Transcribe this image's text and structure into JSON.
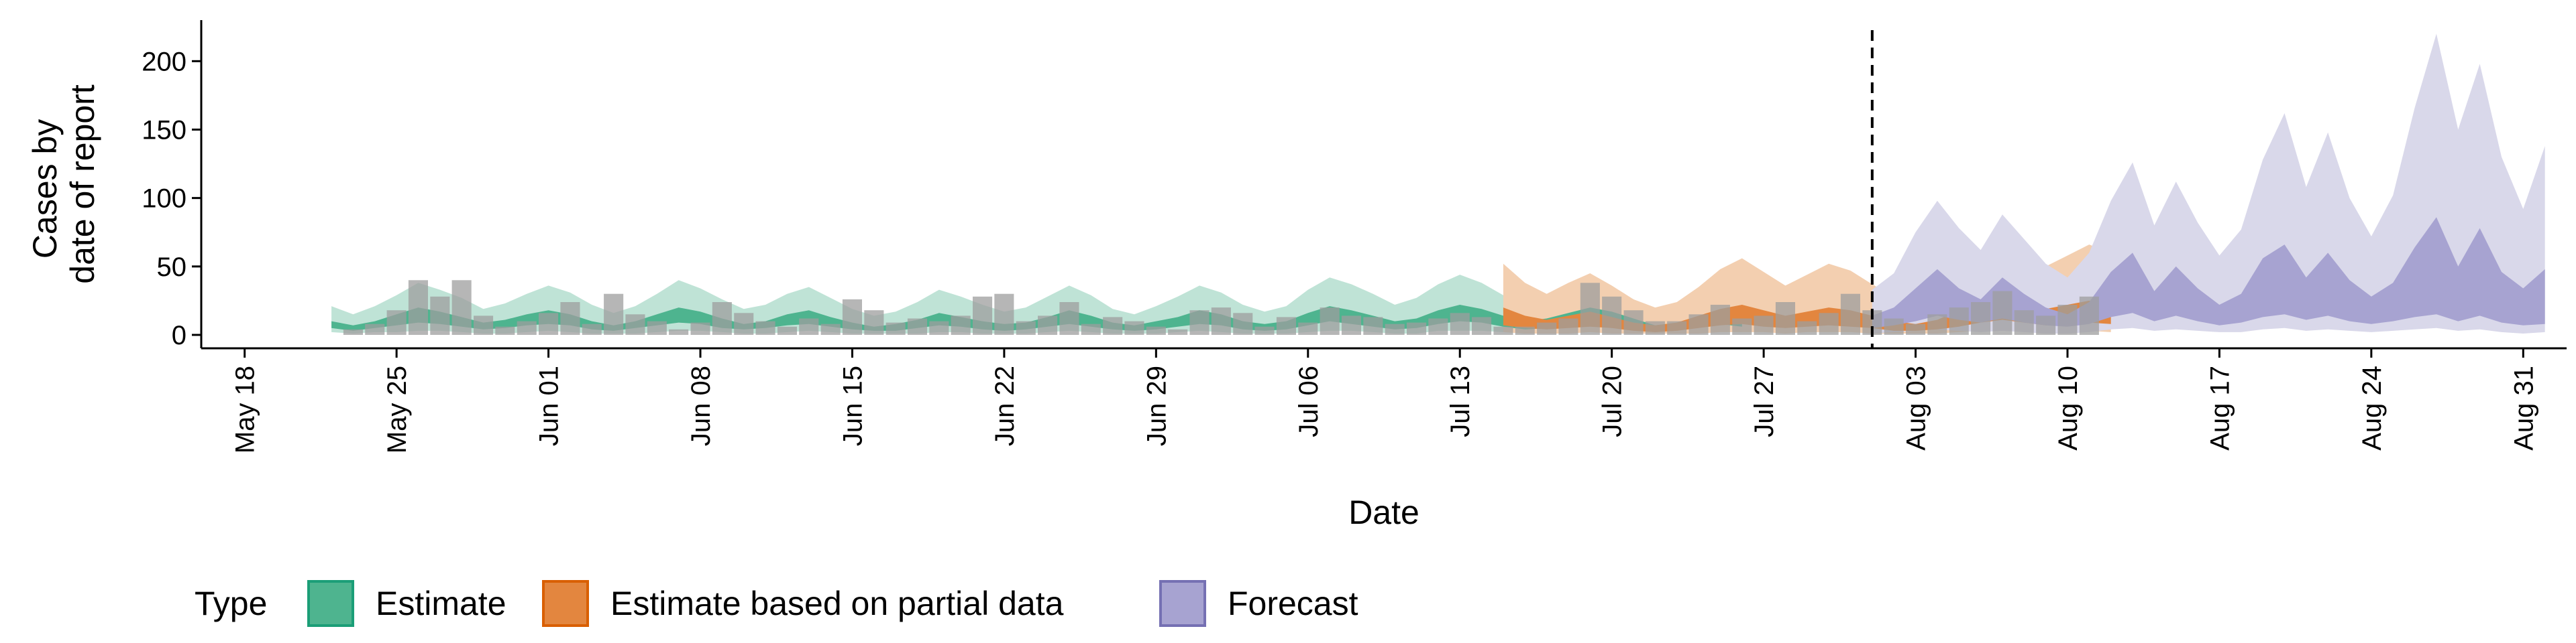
{
  "chart_data": {
    "type": "area",
    "title": "",
    "xlabel": "Date",
    "ylabel_lines": [
      "Cases by",
      "date of report"
    ],
    "ylim": [
      0,
      230
    ],
    "yticks": [
      0,
      50,
      100,
      150,
      200
    ],
    "x_range": [
      "2020-05-16",
      "2020-09-02"
    ],
    "xticks": [
      {
        "date": "2020-05-18",
        "label": "May 18"
      },
      {
        "date": "2020-05-25",
        "label": "May 25"
      },
      {
        "date": "2020-06-01",
        "label": "Jun 01"
      },
      {
        "date": "2020-06-08",
        "label": "Jun 08"
      },
      {
        "date": "2020-06-15",
        "label": "Jun 15"
      },
      {
        "date": "2020-06-22",
        "label": "Jun 22"
      },
      {
        "date": "2020-06-29",
        "label": "Jun 29"
      },
      {
        "date": "2020-07-06",
        "label": "Jul 06"
      },
      {
        "date": "2020-07-13",
        "label": "Jul 13"
      },
      {
        "date": "2020-07-20",
        "label": "Jul 20"
      },
      {
        "date": "2020-07-27",
        "label": "Jul 27"
      },
      {
        "date": "2020-08-03",
        "label": "Aug 03"
      },
      {
        "date": "2020-08-10",
        "label": "Aug 10"
      },
      {
        "date": "2020-08-17",
        "label": "Aug 17"
      },
      {
        "date": "2020-08-24",
        "label": "Aug 24"
      },
      {
        "date": "2020-08-31",
        "label": "Aug 31"
      }
    ],
    "forecast_date": "2020-08-01",
    "legend": {
      "title": "Type",
      "placement": "bottom",
      "entries": [
        {
          "key": "estimate",
          "label": "Estimate"
        },
        {
          "key": "partial",
          "label": "Estimate based on partial data"
        },
        {
          "key": "forecast",
          "label": "Forecast"
        }
      ]
    },
    "colors": {
      "estimate": "#1b9e77",
      "partial": "#d95f02",
      "forecast": "#7570b3",
      "observed": "#9e9e9e",
      "estimate_outer": "#bfe3d6",
      "estimate_inner": "#4eb48f",
      "partial_outer": "#f3cfb0",
      "partial_inner": "#e3863f",
      "forecast_outer": "#d9d8ea",
      "forecast_inner": "#a7a3d1"
    },
    "series": [
      {
        "key": "estimate",
        "start": "2020-05-22",
        "outer_upper": [
          21,
          15,
          21,
          29,
          38,
          33,
          27,
          19,
          23,
          30,
          36,
          31,
          22,
          16,
          21,
          30,
          40,
          34,
          26,
          19,
          22,
          30,
          35,
          27,
          19,
          14,
          17,
          24,
          33,
          28,
          22,
          17,
          20,
          28,
          36,
          29,
          19,
          15,
          21,
          28,
          36,
          31,
          22,
          17,
          21,
          33,
          42,
          37,
          30,
          22,
          27,
          37,
          44,
          38,
          29,
          21,
          25,
          33,
          40,
          35,
          26,
          17,
          19,
          28,
          35,
          30
        ],
        "inner_upper": [
          10,
          7,
          10,
          15,
          20,
          17,
          13,
          9,
          11,
          15,
          18,
          15,
          10,
          7,
          10,
          15,
          20,
          17,
          12,
          8,
          10,
          15,
          18,
          13,
          9,
          6,
          8,
          11,
          16,
          13,
          10,
          8,
          9,
          13,
          18,
          14,
          9,
          7,
          10,
          13,
          18,
          15,
          10,
          8,
          10,
          16,
          21,
          18,
          14,
          10,
          12,
          18,
          22,
          19,
          14,
          10,
          12,
          16,
          20,
          17,
          12,
          7,
          9,
          13,
          17,
          14
        ],
        "inner_lower": [
          5,
          3,
          5,
          7,
          9,
          8,
          6,
          4,
          5,
          7,
          8,
          7,
          4,
          3,
          5,
          7,
          9,
          8,
          5,
          4,
          5,
          7,
          8,
          6,
          4,
          3,
          3,
          5,
          7,
          6,
          4,
          3,
          4,
          6,
          8,
          6,
          4,
          3,
          4,
          6,
          8,
          7,
          4,
          3,
          4,
          7,
          10,
          8,
          6,
          4,
          5,
          8,
          10,
          9,
          6,
          4,
          5,
          7,
          9,
          8,
          5,
          3,
          4,
          6,
          8,
          6
        ],
        "outer_lower": [
          2,
          1,
          2,
          2,
          3,
          3,
          2,
          1,
          1,
          2,
          3,
          2,
          1,
          1,
          1,
          2,
          3,
          3,
          2,
          1,
          1,
          2,
          3,
          2,
          1,
          1,
          1,
          1,
          2,
          2,
          1,
          1,
          1,
          2,
          3,
          2,
          1,
          1,
          1,
          2,
          3,
          2,
          1,
          1,
          1,
          2,
          3,
          3,
          2,
          1,
          1,
          3,
          3,
          3,
          2,
          1,
          1,
          2,
          3,
          2,
          1,
          1,
          1,
          2,
          3,
          2
        ]
      },
      {
        "key": "partial",
        "start": "2020-07-15",
        "outer_upper": [
          52,
          38,
          30,
          38,
          45,
          36,
          26,
          20,
          24,
          35,
          48,
          56,
          46,
          36,
          44,
          52,
          47,
          37,
          28,
          22,
          30,
          46,
          62,
          76,
          65,
          50,
          58,
          66,
          60
        ],
        "inner_upper": [
          20,
          14,
          11,
          14,
          17,
          13,
          9,
          7,
          9,
          14,
          19,
          22,
          18,
          14,
          17,
          20,
          18,
          14,
          10,
          8,
          11,
          18,
          25,
          30,
          25,
          19,
          22,
          25,
          22
        ],
        "inner_lower": [
          7,
          5,
          4,
          5,
          6,
          5,
          3,
          2,
          3,
          5,
          7,
          8,
          6,
          5,
          6,
          7,
          6,
          5,
          3,
          3,
          4,
          6,
          9,
          11,
          9,
          7,
          8,
          9,
          8
        ],
        "outer_lower": [
          2,
          1,
          1,
          1,
          2,
          1,
          1,
          1,
          1,
          1,
          2,
          2,
          2,
          1,
          2,
          2,
          2,
          1,
          1,
          1,
          1,
          2,
          3,
          3,
          3,
          2,
          2,
          3,
          2
        ]
      },
      {
        "key": "forecast",
        "start": "2020-08-01",
        "outer_upper": [
          33,
          45,
          75,
          98,
          78,
          62,
          88,
          70,
          52,
          42,
          60,
          98,
          126,
          80,
          112,
          82,
          58,
          77,
          128,
          162,
          108,
          148,
          100,
          72,
          102,
          166,
          220,
          150,
          198,
          130,
          92,
          138
        ],
        "inner_upper": [
          14,
          20,
          34,
          48,
          34,
          26,
          42,
          30,
          20,
          15,
          24,
          46,
          60,
          32,
          50,
          34,
          22,
          30,
          56,
          66,
          42,
          60,
          40,
          28,
          38,
          64,
          86,
          50,
          78,
          46,
          34,
          48
        ],
        "inner_lower": [
          5,
          7,
          10,
          14,
          11,
          9,
          12,
          9,
          7,
          6,
          8,
          13,
          16,
          10,
          14,
          10,
          7,
          9,
          13,
          15,
          11,
          14,
          10,
          8,
          10,
          13,
          15,
          10,
          14,
          9,
          7,
          8
        ],
        "outer_lower": [
          1,
          2,
          3,
          4,
          3,
          2,
          3,
          2,
          1,
          1,
          2,
          4,
          5,
          3,
          4,
          3,
          2,
          2,
          4,
          5,
          3,
          4,
          3,
          2,
          3,
          4,
          5,
          3,
          4,
          2,
          1,
          2
        ]
      }
    ],
    "observed": {
      "start": "2020-05-23",
      "values": [
        4,
        8,
        18,
        40,
        28,
        40,
        14,
        6,
        10,
        16,
        24,
        8,
        30,
        15,
        10,
        4,
        9,
        24,
        16,
        10,
        6,
        12,
        8,
        26,
        18,
        9,
        12,
        10,
        14,
        28,
        30,
        10,
        14,
        24,
        8,
        13,
        10,
        6,
        4,
        18,
        20,
        16,
        6,
        13,
        9,
        20,
        14,
        13,
        8,
        9,
        12,
        16,
        13,
        6,
        6,
        9,
        12,
        38,
        28,
        18,
        10,
        10,
        15,
        22,
        12,
        14,
        24,
        10,
        16,
        30,
        18,
        12,
        8,
        15,
        20,
        24,
        32,
        18,
        14,
        22,
        28
      ]
    }
  }
}
